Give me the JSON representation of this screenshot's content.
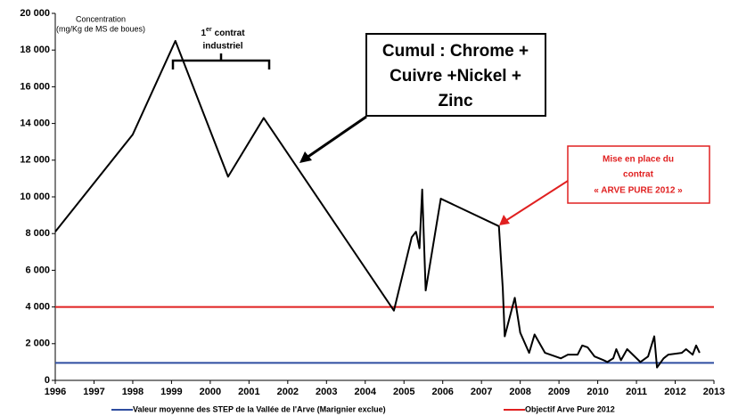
{
  "chart_data": {
    "type": "line",
    "y_axis_label": [
      "Concentration",
      "(mg/Kg de MS de boues)"
    ],
    "x": [
      1996,
      1998,
      1999.1,
      2000.46,
      2001.38,
      2004.74,
      2005.2,
      2005.31,
      2005.4,
      2005.47,
      2005.56,
      2005.95,
      2007.45,
      2007.55,
      2007.6,
      2007.86,
      2008,
      2008.23,
      2008.37,
      2008.64,
      2009.05,
      2009.23,
      2009.48,
      2009.6,
      2009.74,
      2009.92,
      2010.15,
      2010.25,
      2010.4,
      2010.48,
      2010.6,
      2010.76,
      2011.1,
      2011.3,
      2011.46,
      2011.53,
      2011.7,
      2011.82,
      2012.17,
      2012.28,
      2012.45,
      2012.54,
      2012.63
    ],
    "series": [
      {
        "color": "#000000",
        "values": [
          8100,
          13400,
          18500,
          11100,
          14300,
          3800,
          7800,
          8100,
          7200,
          10400,
          4900,
          9900,
          8400,
          5000,
          2400,
          4500,
          2600,
          1500,
          2500,
          1500,
          1200,
          1400,
          1400,
          1900,
          1800,
          1300,
          1100,
          1000,
          1200,
          1700,
          1100,
          1700,
          1000,
          1300,
          2400,
          700,
          1200,
          1400,
          1500,
          1700,
          1400,
          1900,
          1500
        ]
      }
    ],
    "reference_lines": [
      {
        "name": "Valeur moyenne des STEP de la Vallée de l'Arve (Marignier exclue)",
        "color": "#2e4da0",
        "value": 950
      },
      {
        "name": "Objectif Arve Pure 2012",
        "color": "#e02020",
        "value": 4000
      }
    ],
    "xlim": [
      1996,
      2013
    ],
    "xticks": [
      1996,
      1997,
      1998,
      1999,
      2000,
      2001,
      2002,
      2003,
      2004,
      2005,
      2006,
      2007,
      2008,
      2009,
      2010,
      2011,
      2012,
      2013
    ],
    "ylim": [
      0,
      20000
    ],
    "yticks": [
      0,
      {
        "value": 2000,
        "label": "2 000"
      },
      {
        "value": 4000,
        "label": "4 000"
      },
      {
        "value": 6000,
        "label": "6 000"
      },
      {
        "value": 8000,
        "label": "8 000"
      },
      {
        "value": 10000,
        "label": "10 000"
      },
      {
        "value": 12000,
        "label": "12 000"
      },
      {
        "value": 14000,
        "label": "14 000"
      },
      {
        "value": 16000,
        "label": "16 000"
      },
      {
        "value": 18000,
        "label": "18 000"
      },
      {
        "value": 20000,
        "label": "20 000"
      }
    ],
    "grid": false,
    "annotations": {
      "contract": {
        "number": "1",
        "superscript": "er",
        "line1": "contrat",
        "line2": "industriel"
      },
      "cumul": [
        "Cumul : Chrome +",
        "Cuivre +Nickel +",
        "Zinc"
      ],
      "arve": [
        "Mise en place du",
        "contrat",
        "« ARVE PURE 2012 »"
      ]
    }
  }
}
